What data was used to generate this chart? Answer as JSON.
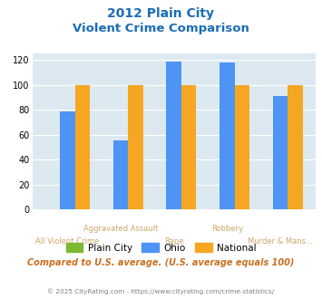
{
  "title_line1": "2012 Plain City",
  "title_line2": "Violent Crime Comparison",
  "categories": [
    "All Violent Crime",
    "Aggravated Assault",
    "Rape",
    "Robbery",
    "Murder & Mans..."
  ],
  "plain_city": [
    0,
    0,
    0,
    0,
    0
  ],
  "ohio": [
    79,
    55,
    119,
    118,
    91
  ],
  "national": [
    100,
    100,
    100,
    100,
    100
  ],
  "color_plain_city": "#7db832",
  "color_ohio": "#4d94f5",
  "color_national": "#f5a623",
  "ylim": [
    0,
    125
  ],
  "yticks": [
    0,
    20,
    40,
    60,
    80,
    100,
    120
  ],
  "note": "Compared to U.S. average. (U.S. average equals 100)",
  "footer": "© 2025 CityRating.com - https://www.cityrating.com/crime-statistics/",
  "bg_color": "#dde9f0",
  "title_color": "#1a6cb5",
  "axis_label_color": "#c8a868",
  "note_color": "#c87020",
  "footer_color": "#808080",
  "bar_width": 0.28
}
